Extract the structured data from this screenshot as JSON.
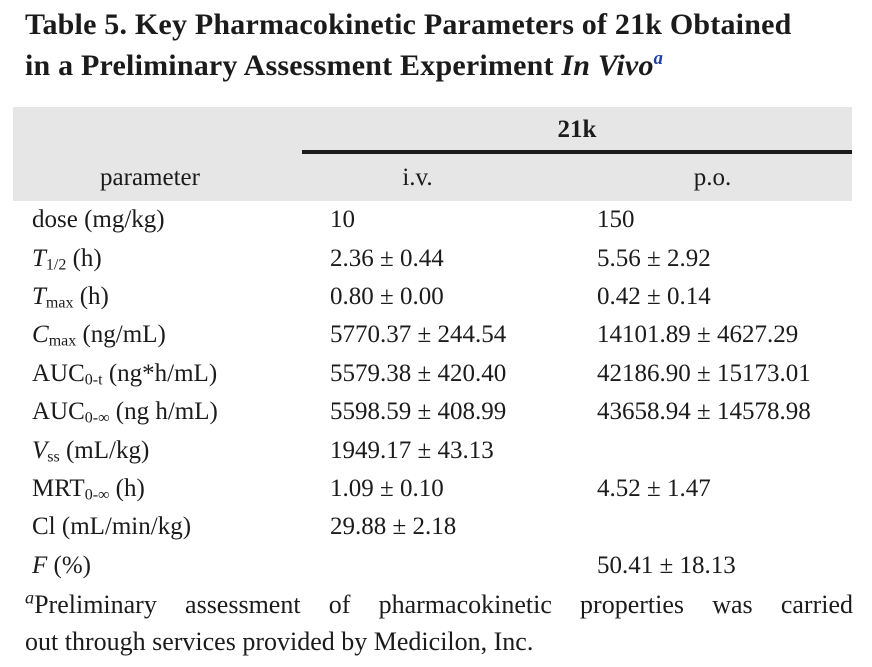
{
  "colors": {
    "background": "#ffffff",
    "text": "#1b1b1b",
    "header_band": "#e6e6e6",
    "rule": "#1c1c1c",
    "title_superscript_blue": "#1e3f9f"
  },
  "title": {
    "line1": "Table 5. Key Pharmacokinetic Parameters of 21k Obtained",
    "line2_prefix": "in a Preliminary Assessment Experiment ",
    "line2_italic": "In Vivo",
    "line2_superscript": "a"
  },
  "table": {
    "group_header": "21k",
    "col_headers": {
      "parameter": "parameter",
      "iv": "i.v.",
      "po": "p.o."
    },
    "rows": [
      {
        "param": {
          "base": "dose",
          "italic": false,
          "sub": "",
          "unit": " (mg/kg)"
        },
        "iv": "10",
        "po": "150"
      },
      {
        "param": {
          "base": "T",
          "italic": true,
          "sub": "1/2",
          "unit": " (h)"
        },
        "iv": "2.36 ± 0.44",
        "po": "5.56 ± 2.92"
      },
      {
        "param": {
          "base": "T",
          "italic": true,
          "sub": "max",
          "unit": " (h)"
        },
        "iv": "0.80 ± 0.00",
        "po": "0.42 ± 0.14"
      },
      {
        "param": {
          "base": "C",
          "italic": true,
          "sub": "max",
          "unit": " (ng/mL)"
        },
        "iv": "5770.37 ± 244.54",
        "po": "14101.89 ± 4627.29"
      },
      {
        "param": {
          "base": "AUC",
          "italic": false,
          "sub": "0-t",
          "unit": " (ng*h/mL)"
        },
        "iv": "5579.38 ± 420.40",
        "po": "42186.90 ± 15173.01"
      },
      {
        "param": {
          "base": "AUC",
          "italic": false,
          "sub": "0-∞",
          "unit": " (ng h/mL)"
        },
        "iv": "5598.59 ± 408.99",
        "po": "43658.94 ± 14578.98"
      },
      {
        "param": {
          "base": "V",
          "italic": true,
          "sub": "ss",
          "unit": " (mL/kg)"
        },
        "iv": "1949.17 ± 43.13",
        "po": ""
      },
      {
        "param": {
          "base": "MRT",
          "italic": false,
          "sub": "0-∞",
          "unit": " (h)"
        },
        "iv": "1.09 ± 0.10",
        "po": "4.52 ± 1.47"
      },
      {
        "param": {
          "base": "Cl",
          "italic": false,
          "sub": "",
          "unit": " (mL/min/kg)"
        },
        "iv": "29.88 ± 2.18",
        "po": ""
      },
      {
        "param": {
          "base": "F",
          "italic": true,
          "sub": "",
          "unit": " (%)"
        },
        "iv": "",
        "po": "50.41 ± 18.13"
      }
    ]
  },
  "footnote": {
    "marker": "a",
    "line1": "Preliminary assessment of pharmacokinetic properties was carried",
    "line2": "out through services provided by Medicilon, Inc.",
    "full_text": "Preliminary assessment of pharmacokinetic properties was carried out through services provided by Medicilon, Inc."
  }
}
